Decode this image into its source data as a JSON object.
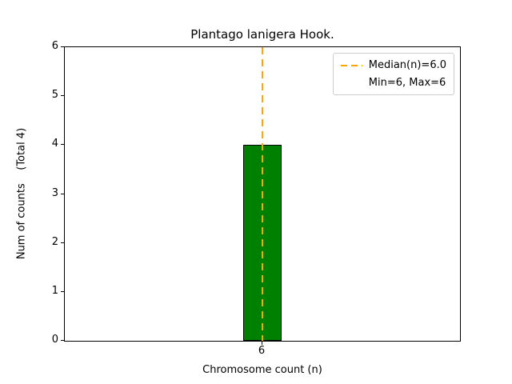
{
  "chart_data": {
    "type": "bar",
    "title": "Plantago lanigera Hook.",
    "xlabel": "Chromosome count (n)",
    "ylabel": "Num of counts    (Total 4)",
    "categories": [
      "6"
    ],
    "values": [
      4
    ],
    "ylim": [
      0,
      6
    ],
    "yticks": [
      0,
      1,
      2,
      3,
      4,
      5,
      6
    ],
    "grid": false,
    "bar_color": "#008000",
    "bar_edge_color": "#000000",
    "median_line": {
      "at_category": "6",
      "color": "#FFA500",
      "style": "dashed"
    },
    "legend": {
      "position": "upper right",
      "entries": [
        {
          "label": "Median(n)=6.0",
          "handle": "dashed-line",
          "color": "#FFA500"
        },
        {
          "label": "Min=6, Max=6",
          "handle": "none"
        }
      ]
    }
  }
}
